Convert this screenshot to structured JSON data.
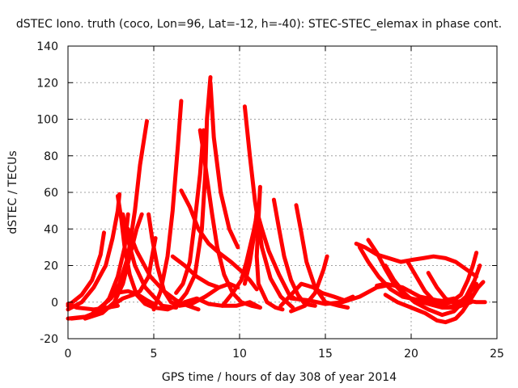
{
  "chart_data": {
    "type": "line",
    "title": "dSTEC Iono. truth (coco, Lon=96, Lat=-12, h=-40): STEC-STEC_elemax in phase cont.",
    "xlabel": "GPS time / hours of day 308 of year 2014",
    "ylabel": "dSTEC  / TECUs",
    "xlim": [
      0,
      25
    ],
    "ylim": [
      -20,
      140
    ],
    "xticks": [
      0,
      5,
      10,
      15,
      20,
      25
    ],
    "yticks": [
      -20,
      0,
      20,
      40,
      60,
      80,
      100,
      120,
      140
    ],
    "grid": true,
    "color": "#ff0000",
    "series": [
      {
        "points": [
          [
            0.0,
            -2
          ],
          [
            0.8,
            4
          ],
          [
            1.4,
            12
          ],
          [
            1.9,
            26
          ],
          [
            2.1,
            38
          ]
        ]
      },
      {
        "points": [
          [
            0.0,
            -4
          ],
          [
            0.8,
            0
          ],
          [
            1.5,
            8
          ],
          [
            2.2,
            20
          ],
          [
            2.6,
            35
          ],
          [
            2.9,
            50
          ],
          [
            3.0,
            59
          ]
        ]
      },
      {
        "points": [
          [
            0.0,
            -1
          ],
          [
            0.5,
            -3
          ],
          [
            1.5,
            -4
          ],
          [
            2.3,
            -3
          ],
          [
            2.9,
            -2
          ]
        ]
      },
      {
        "points": [
          [
            2.9,
            58
          ],
          [
            3.1,
            46
          ],
          [
            3.3,
            30
          ],
          [
            3.6,
            15
          ],
          [
            4.0,
            4
          ],
          [
            4.5,
            -1
          ],
          [
            5.0,
            -3
          ],
          [
            5.8,
            -4
          ],
          [
            6.3,
            -2
          ]
        ]
      },
      {
        "points": [
          [
            0.0,
            -9
          ],
          [
            1.0,
            -8
          ],
          [
            1.8,
            -5
          ],
          [
            2.4,
            2
          ],
          [
            2.9,
            14
          ],
          [
            3.3,
            30
          ],
          [
            3.5,
            48
          ]
        ]
      },
      {
        "points": [
          [
            1.0,
            -9
          ],
          [
            2.0,
            -6
          ],
          [
            2.7,
            0
          ],
          [
            3.2,
            10
          ],
          [
            3.6,
            25
          ],
          [
            4.0,
            40
          ],
          [
            4.3,
            48
          ]
        ]
      },
      {
        "points": [
          [
            1.5,
            -6
          ],
          [
            2.5,
            2
          ],
          [
            3.0,
            10
          ],
          [
            3.5,
            25
          ],
          [
            3.9,
            50
          ],
          [
            4.2,
            75
          ],
          [
            4.6,
            99
          ]
        ]
      },
      {
        "points": [
          [
            0.2,
            -9
          ],
          [
            1.2,
            -8
          ],
          [
            2.0,
            -2
          ],
          [
            2.8,
            5
          ],
          [
            3.5,
            6
          ],
          [
            4.1,
            4
          ],
          [
            4.6,
            1
          ],
          [
            5.0,
            -1
          ]
        ]
      },
      {
        "points": [
          [
            1.5,
            -5
          ],
          [
            2.4,
            -3
          ],
          [
            3.2,
            2
          ],
          [
            3.8,
            4
          ],
          [
            4.2,
            6
          ],
          [
            4.7,
            14
          ],
          [
            4.9,
            25
          ],
          [
            5.1,
            35
          ]
        ]
      },
      {
        "points": [
          [
            4.7,
            48
          ],
          [
            4.9,
            35
          ],
          [
            5.2,
            20
          ],
          [
            5.6,
            6
          ],
          [
            6.0,
            0
          ],
          [
            6.5,
            -2
          ],
          [
            7.2,
            -1
          ],
          [
            8.0,
            3
          ],
          [
            8.8,
            8
          ],
          [
            9.4,
            10
          ],
          [
            9.9,
            8
          ]
        ]
      },
      {
        "points": [
          [
            3.2,
            48
          ],
          [
            3.5,
            34
          ],
          [
            3.9,
            20
          ],
          [
            4.5,
            8
          ],
          [
            5.5,
            -2
          ],
          [
            6.3,
            -3
          ]
        ]
      },
      {
        "points": [
          [
            3.5,
            40
          ],
          [
            4.0,
            28
          ],
          [
            4.8,
            14
          ],
          [
            5.6,
            6
          ],
          [
            6.3,
            1
          ],
          [
            7.0,
            -2
          ],
          [
            7.6,
            -4
          ]
        ]
      },
      {
        "points": [
          [
            5.0,
            -4
          ],
          [
            5.4,
            6
          ],
          [
            5.8,
            25
          ],
          [
            6.1,
            50
          ],
          [
            6.4,
            85
          ],
          [
            6.6,
            110
          ]
        ]
      },
      {
        "points": [
          [
            6.1,
            25
          ],
          [
            6.8,
            20
          ],
          [
            7.5,
            14
          ],
          [
            8.2,
            10
          ],
          [
            8.8,
            8
          ]
        ]
      },
      {
        "points": [
          [
            6.6,
            61
          ],
          [
            7.1,
            52
          ],
          [
            7.6,
            40
          ],
          [
            8.2,
            32
          ],
          [
            8.8,
            27
          ],
          [
            9.5,
            22
          ],
          [
            10.1,
            17
          ],
          [
            10.6,
            12
          ],
          [
            11.0,
            7
          ]
        ]
      },
      {
        "points": [
          [
            6.3,
            5
          ],
          [
            6.7,
            10
          ],
          [
            7.1,
            22
          ],
          [
            7.4,
            45
          ],
          [
            7.7,
            70
          ],
          [
            7.9,
            94
          ]
        ]
      },
      {
        "points": [
          [
            7.7,
            94
          ],
          [
            7.9,
            82
          ],
          [
            8.1,
            68
          ],
          [
            8.4,
            48
          ],
          [
            8.7,
            30
          ],
          [
            9.1,
            15
          ],
          [
            9.6,
            5
          ],
          [
            10.1,
            0
          ],
          [
            10.7,
            -2
          ],
          [
            11.2,
            -3
          ]
        ]
      },
      {
        "points": [
          [
            6.3,
            -2
          ],
          [
            6.9,
            5
          ],
          [
            7.4,
            15
          ],
          [
            7.8,
            40
          ],
          [
            8.0,
            70
          ],
          [
            8.1,
            100
          ],
          [
            8.3,
            123
          ]
        ]
      },
      {
        "points": [
          [
            8.3,
            120
          ],
          [
            8.5,
            90
          ],
          [
            8.9,
            60
          ],
          [
            9.4,
            40
          ],
          [
            9.9,
            30
          ]
        ]
      },
      {
        "points": [
          [
            6.8,
            0
          ],
          [
            7.5,
            2
          ],
          [
            8.2,
            -1
          ],
          [
            9.0,
            -2
          ],
          [
            9.8,
            -2
          ],
          [
            10.6,
            0
          ],
          [
            11.2,
            -3
          ]
        ]
      },
      {
        "points": [
          [
            9.0,
            -2
          ],
          [
            9.6,
            5
          ],
          [
            10.1,
            12
          ],
          [
            10.4,
            22
          ],
          [
            10.8,
            38
          ],
          [
            11.1,
            52
          ]
        ]
      },
      {
        "points": [
          [
            10.3,
            107
          ],
          [
            10.6,
            80
          ],
          [
            10.9,
            55
          ],
          [
            11.3,
            30
          ],
          [
            11.8,
            13
          ],
          [
            12.4,
            3
          ],
          [
            13.1,
            -3
          ]
        ]
      },
      {
        "points": [
          [
            11.2,
            63
          ],
          [
            11.1,
            45
          ],
          [
            11.0,
            25
          ],
          [
            11.1,
            10
          ],
          [
            11.6,
            0
          ],
          [
            12.1,
            -3
          ],
          [
            12.5,
            -4
          ]
        ]
      },
      {
        "points": [
          [
            10.3,
            10
          ],
          [
            10.6,
            22
          ],
          [
            10.9,
            40
          ],
          [
            11.0,
            50
          ],
          [
            11.3,
            40
          ],
          [
            11.7,
            28
          ],
          [
            12.3,
            15
          ],
          [
            12.9,
            4
          ],
          [
            13.2,
            2
          ]
        ]
      },
      {
        "points": [
          [
            12.0,
            56
          ],
          [
            12.3,
            40
          ],
          [
            12.6,
            25
          ],
          [
            13.0,
            12
          ],
          [
            13.4,
            4
          ],
          [
            13.8,
            -1
          ],
          [
            14.4,
            -2
          ]
        ]
      },
      {
        "points": [
          [
            12.4,
            -2
          ],
          [
            13.0,
            4
          ],
          [
            13.6,
            10
          ],
          [
            14.3,
            8
          ],
          [
            14.8,
            5
          ]
        ]
      },
      {
        "points": [
          [
            13.3,
            53
          ],
          [
            13.6,
            38
          ],
          [
            13.9,
            22
          ],
          [
            14.4,
            8
          ],
          [
            15.0,
            0
          ],
          [
            15.8,
            -2
          ],
          [
            16.3,
            -3
          ]
        ]
      },
      {
        "points": [
          [
            13.0,
            -5
          ],
          [
            13.8,
            -2
          ],
          [
            14.4,
            5
          ],
          [
            14.9,
            18
          ],
          [
            15.1,
            25
          ]
        ]
      },
      {
        "points": [
          [
            13.0,
            2
          ],
          [
            14.0,
            1
          ],
          [
            15.0,
            -1
          ],
          [
            16.0,
            0
          ],
          [
            17.0,
            3
          ],
          [
            18.0,
            8
          ],
          [
            18.5,
            9
          ]
        ]
      },
      {
        "points": [
          [
            14.8,
            5
          ],
          [
            15.5,
            3
          ],
          [
            16.1,
            1
          ],
          [
            16.6,
            3
          ]
        ]
      },
      {
        "points": [
          [
            16.8,
            32
          ],
          [
            17.3,
            30
          ],
          [
            18.0,
            26
          ],
          [
            18.7,
            24
          ],
          [
            19.4,
            22
          ],
          [
            20.0,
            23
          ],
          [
            20.7,
            24
          ],
          [
            21.3,
            25
          ],
          [
            22.0,
            24
          ],
          [
            22.6,
            22
          ],
          [
            23.2,
            18
          ],
          [
            23.8,
            14
          ]
        ]
      },
      {
        "points": [
          [
            17.5,
            34
          ],
          [
            18.0,
            27
          ],
          [
            18.5,
            18
          ],
          [
            19.0,
            10
          ],
          [
            19.6,
            4
          ],
          [
            20.2,
            1
          ],
          [
            21.0,
            -1
          ],
          [
            21.8,
            -3
          ],
          [
            22.6,
            -3
          ],
          [
            23.5,
            0
          ]
        ]
      },
      {
        "points": [
          [
            17.0,
            30
          ],
          [
            17.5,
            22
          ],
          [
            18.1,
            14
          ],
          [
            18.8,
            7
          ],
          [
            19.5,
            3
          ],
          [
            20.5,
            1
          ],
          [
            21.5,
            0
          ],
          [
            22.5,
            2
          ]
        ]
      },
      {
        "points": [
          [
            18.5,
            20
          ],
          [
            19.0,
            12
          ],
          [
            19.6,
            5
          ],
          [
            20.2,
            0
          ],
          [
            21.0,
            -4
          ],
          [
            21.8,
            -7
          ],
          [
            22.5,
            -5
          ],
          [
            23.0,
            0
          ],
          [
            23.4,
            5
          ],
          [
            23.8,
            10
          ]
        ]
      },
      {
        "points": [
          [
            19.8,
            22
          ],
          [
            20.3,
            14
          ],
          [
            20.8,
            6
          ],
          [
            21.4,
            0
          ],
          [
            22.0,
            -3
          ],
          [
            22.6,
            -2
          ],
          [
            23.2,
            3
          ],
          [
            23.7,
            12
          ],
          [
            24.0,
            20
          ]
        ]
      },
      {
        "points": [
          [
            18.5,
            4
          ],
          [
            19.2,
            0
          ],
          [
            20.0,
            -3
          ],
          [
            20.8,
            -6
          ],
          [
            21.5,
            -10
          ],
          [
            22.0,
            -11
          ],
          [
            22.6,
            -9
          ],
          [
            23.0,
            -5
          ],
          [
            23.5,
            2
          ],
          [
            23.9,
            8
          ],
          [
            24.2,
            11
          ]
        ]
      },
      {
        "points": [
          [
            21.0,
            16
          ],
          [
            21.5,
            8
          ],
          [
            22.0,
            2
          ],
          [
            22.6,
            -1
          ],
          [
            23.2,
            0
          ],
          [
            23.6,
            4
          ]
        ]
      },
      {
        "points": [
          [
            20.0,
            2
          ],
          [
            20.8,
            0
          ],
          [
            21.6,
            -2
          ],
          [
            22.3,
            0
          ],
          [
            22.9,
            4
          ],
          [
            23.3,
            12
          ],
          [
            23.6,
            20
          ],
          [
            23.8,
            27
          ]
        ]
      },
      {
        "points": [
          [
            18.0,
            9
          ],
          [
            18.5,
            10
          ],
          [
            19.5,
            8
          ],
          [
            20.5,
            3
          ],
          [
            21.5,
            1
          ],
          [
            22.5,
            0
          ],
          [
            23.2,
            1
          ],
          [
            23.8,
            0
          ],
          [
            24.3,
            0
          ]
        ]
      }
    ]
  }
}
